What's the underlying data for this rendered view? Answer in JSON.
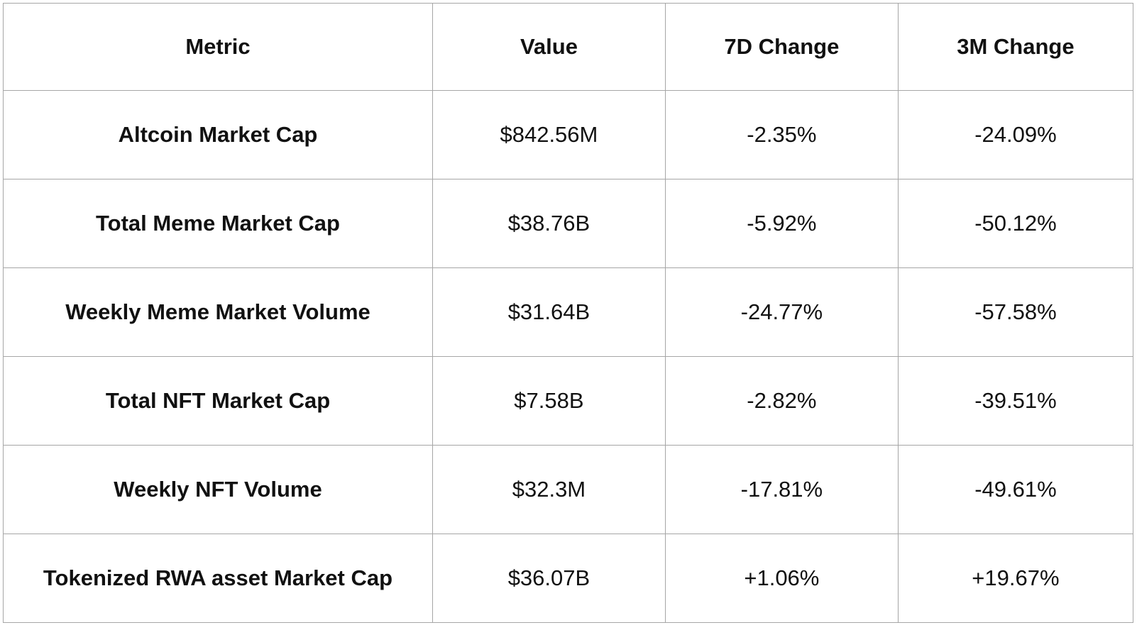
{
  "table": {
    "columns": [
      "Metric",
      "Value",
      "7D Change",
      "3M Change"
    ],
    "rows": [
      {
        "metric": "Altcoin Market Cap",
        "value": "$842.56M",
        "change_7d": "-2.35%",
        "change_3m": "-24.09%"
      },
      {
        "metric": "Total Meme Market Cap",
        "value": "$38.76B",
        "change_7d": "-5.92%",
        "change_3m": "-50.12%"
      },
      {
        "metric": "Weekly Meme Market Volume",
        "value": "$31.64B",
        "change_7d": "-24.77%",
        "change_3m": "-57.58%"
      },
      {
        "metric": "Total NFT Market Cap",
        "value": "$7.58B",
        "change_7d": "-2.82%",
        "change_3m": "-39.51%"
      },
      {
        "metric": "Weekly NFT Volume",
        "value": "$32.3M",
        "change_7d": "-17.81%",
        "change_3m": "-49.61%"
      },
      {
        "metric": "Tokenized RWA asset Market Cap",
        "value": "$36.07B",
        "change_7d": "+1.06%",
        "change_3m": "+19.67%"
      }
    ]
  },
  "chart_data": {
    "type": "table",
    "title": "",
    "columns": [
      "Metric",
      "Value",
      "7D Change",
      "3M Change"
    ],
    "rows": [
      [
        "Altcoin Market Cap",
        "$842.56M",
        "-2.35%",
        "-24.09%"
      ],
      [
        "Total Meme Market Cap",
        "$38.76B",
        "-5.92%",
        "-50.12%"
      ],
      [
        "Weekly Meme Market Volume",
        "$31.64B",
        "-24.77%",
        "-57.58%"
      ],
      [
        "Total NFT Market Cap",
        "$7.58B",
        "-2.82%",
        "-39.51%"
      ],
      [
        "Weekly NFT Volume",
        "$32.3M",
        "-17.81%",
        "-49.61%"
      ],
      [
        "Tokenized RWA asset Market Cap",
        "$36.07B",
        "+1.06%",
        "+19.67%"
      ]
    ]
  },
  "colors": {
    "border": "#a6a6a6",
    "text": "#111111",
    "background": "#ffffff"
  }
}
